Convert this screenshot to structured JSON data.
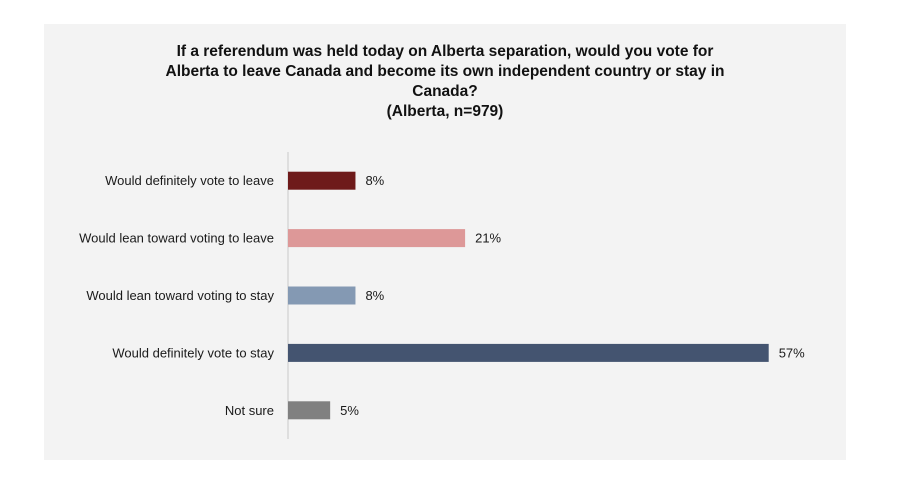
{
  "chart_data": {
    "type": "bar",
    "orientation": "horizontal",
    "title_lines": [
      "If a referendum was held today on Alberta separation, would you vote for",
      "Alberta to leave Canada and become its own independent country or stay in",
      "Canada?",
      "(Alberta, n=979)"
    ],
    "categories": [
      "Would definitely vote to leave",
      "Would lean toward voting to leave",
      "Would lean toward voting to stay",
      "Would definitely vote to stay",
      "Not sure"
    ],
    "values": [
      8,
      21,
      8,
      57,
      5
    ],
    "value_labels": [
      "8%",
      "21%",
      "8%",
      "57%",
      "5%"
    ],
    "colors": [
      "#6e1a1a",
      "#dd9898",
      "#8499b3",
      "#445470",
      "#808080"
    ],
    "axis_color": "#c8c8c8",
    "xlim": [
      0,
      60
    ],
    "grid": false,
    "legend": "none"
  }
}
